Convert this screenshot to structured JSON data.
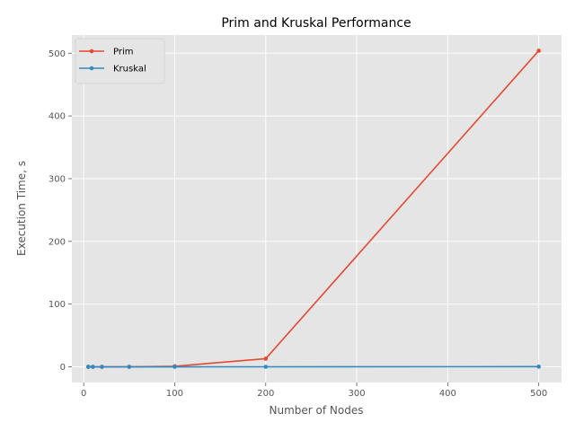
{
  "chart_data": {
    "type": "line",
    "title": "Prim and Kruskal Performance",
    "xlabel": "Number of Nodes",
    "ylabel": "Execution Time, s",
    "xlim": [
      -13,
      525
    ],
    "ylim": [
      -25,
      529
    ],
    "xticks": [
      0,
      100,
      200,
      300,
      400,
      500
    ],
    "yticks": [
      0,
      100,
      200,
      300,
      400,
      500
    ],
    "grid": true,
    "legend": "top-left",
    "style": "ggplot",
    "series": [
      {
        "name": "Prim",
        "color": "#E24A33",
        "x": [
          5,
          10,
          20,
          50,
          100,
          200,
          500
        ],
        "y": [
          0,
          0,
          0.01,
          0.05,
          0.9,
          13,
          504
        ]
      },
      {
        "name": "Kruskal",
        "color": "#348ABD",
        "x": [
          5,
          10,
          20,
          50,
          100,
          200,
          500
        ],
        "y": [
          0,
          0,
          0,
          0,
          0.01,
          0.05,
          0.3
        ]
      }
    ]
  }
}
